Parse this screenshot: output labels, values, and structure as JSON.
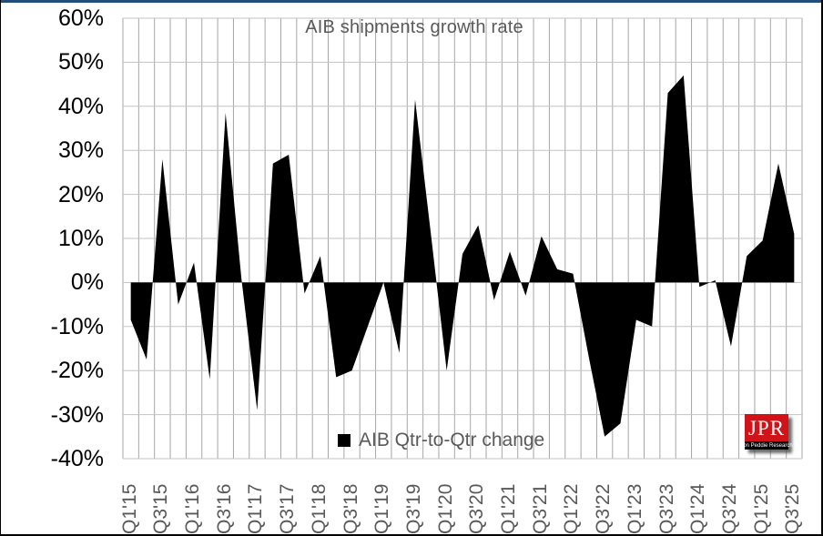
{
  "frame": {
    "top_border_color": "#1f4e79",
    "background": "#ffffff"
  },
  "title": "AIB shipments growth rate",
  "legend": {
    "label": "AIB Qtr-to-Qtr change",
    "swatch_color": "#000000"
  },
  "logo": {
    "text": "JPR",
    "subtext": "Jon Peddie Research",
    "bg_color": "#cf1318",
    "strip_color": "#000000",
    "text_color": "#ffffff"
  },
  "chart_data": {
    "type": "area",
    "title": "AIB shipments growth rate",
    "series_name": "AIB Qtr-to-Qtr change",
    "categories": [
      "Q1'15",
      "Q2'15",
      "Q3'15",
      "Q4'15",
      "Q1'16",
      "Q2'16",
      "Q3'16",
      "Q4'16",
      "Q1'17",
      "Q2'17",
      "Q3'17",
      "Q4'17",
      "Q1'18",
      "Q2'18",
      "Q3'18",
      "Q4'18",
      "Q1'19",
      "Q2'19",
      "Q3'19",
      "Q4'19",
      "Q1'20",
      "Q2'20",
      "Q3'20",
      "Q4'20",
      "Q1'21",
      "Q2'21",
      "Q3'21",
      "Q4'21",
      "Q1'22",
      "Q2'22",
      "Q3'22",
      "Q4'22",
      "Q1'23",
      "Q2'23",
      "Q3'23",
      "Q4'23",
      "Q1'24",
      "Q2'24",
      "Q3'24",
      "Q4'24",
      "Q1'25",
      "Q2'25",
      "Q3'25"
    ],
    "values": [
      -8.5,
      -17.5,
      28,
      -5,
      4.5,
      -22,
      38.5,
      1,
      -29,
      27,
      29,
      -2.5,
      6,
      -21.5,
      -20,
      -10,
      0,
      -16,
      41.5,
      11,
      -20,
      6.5,
      13,
      -4,
      7,
      -3,
      10.5,
      3,
      2,
      -17,
      -35,
      -32,
      -8.5,
      -10,
      43,
      47,
      -1,
      0.5,
      -14.5,
      6,
      9.5,
      27,
      11
    ],
    "ylim": [
      -40,
      60
    ],
    "y_ticks": [
      "60%",
      "50%",
      "40%",
      "30%",
      "20%",
      "10%",
      "0%",
      "-10%",
      "-20%",
      "-30%",
      "-40%"
    ],
    "x_tick_step": 2,
    "fill_color": "#000000",
    "grid": {
      "vertical": true,
      "horizontal": true,
      "vertical_color": "#a6a6a6",
      "horizontal_color": "#c3c3c3"
    },
    "legend_position": "bottom-center-inside"
  }
}
